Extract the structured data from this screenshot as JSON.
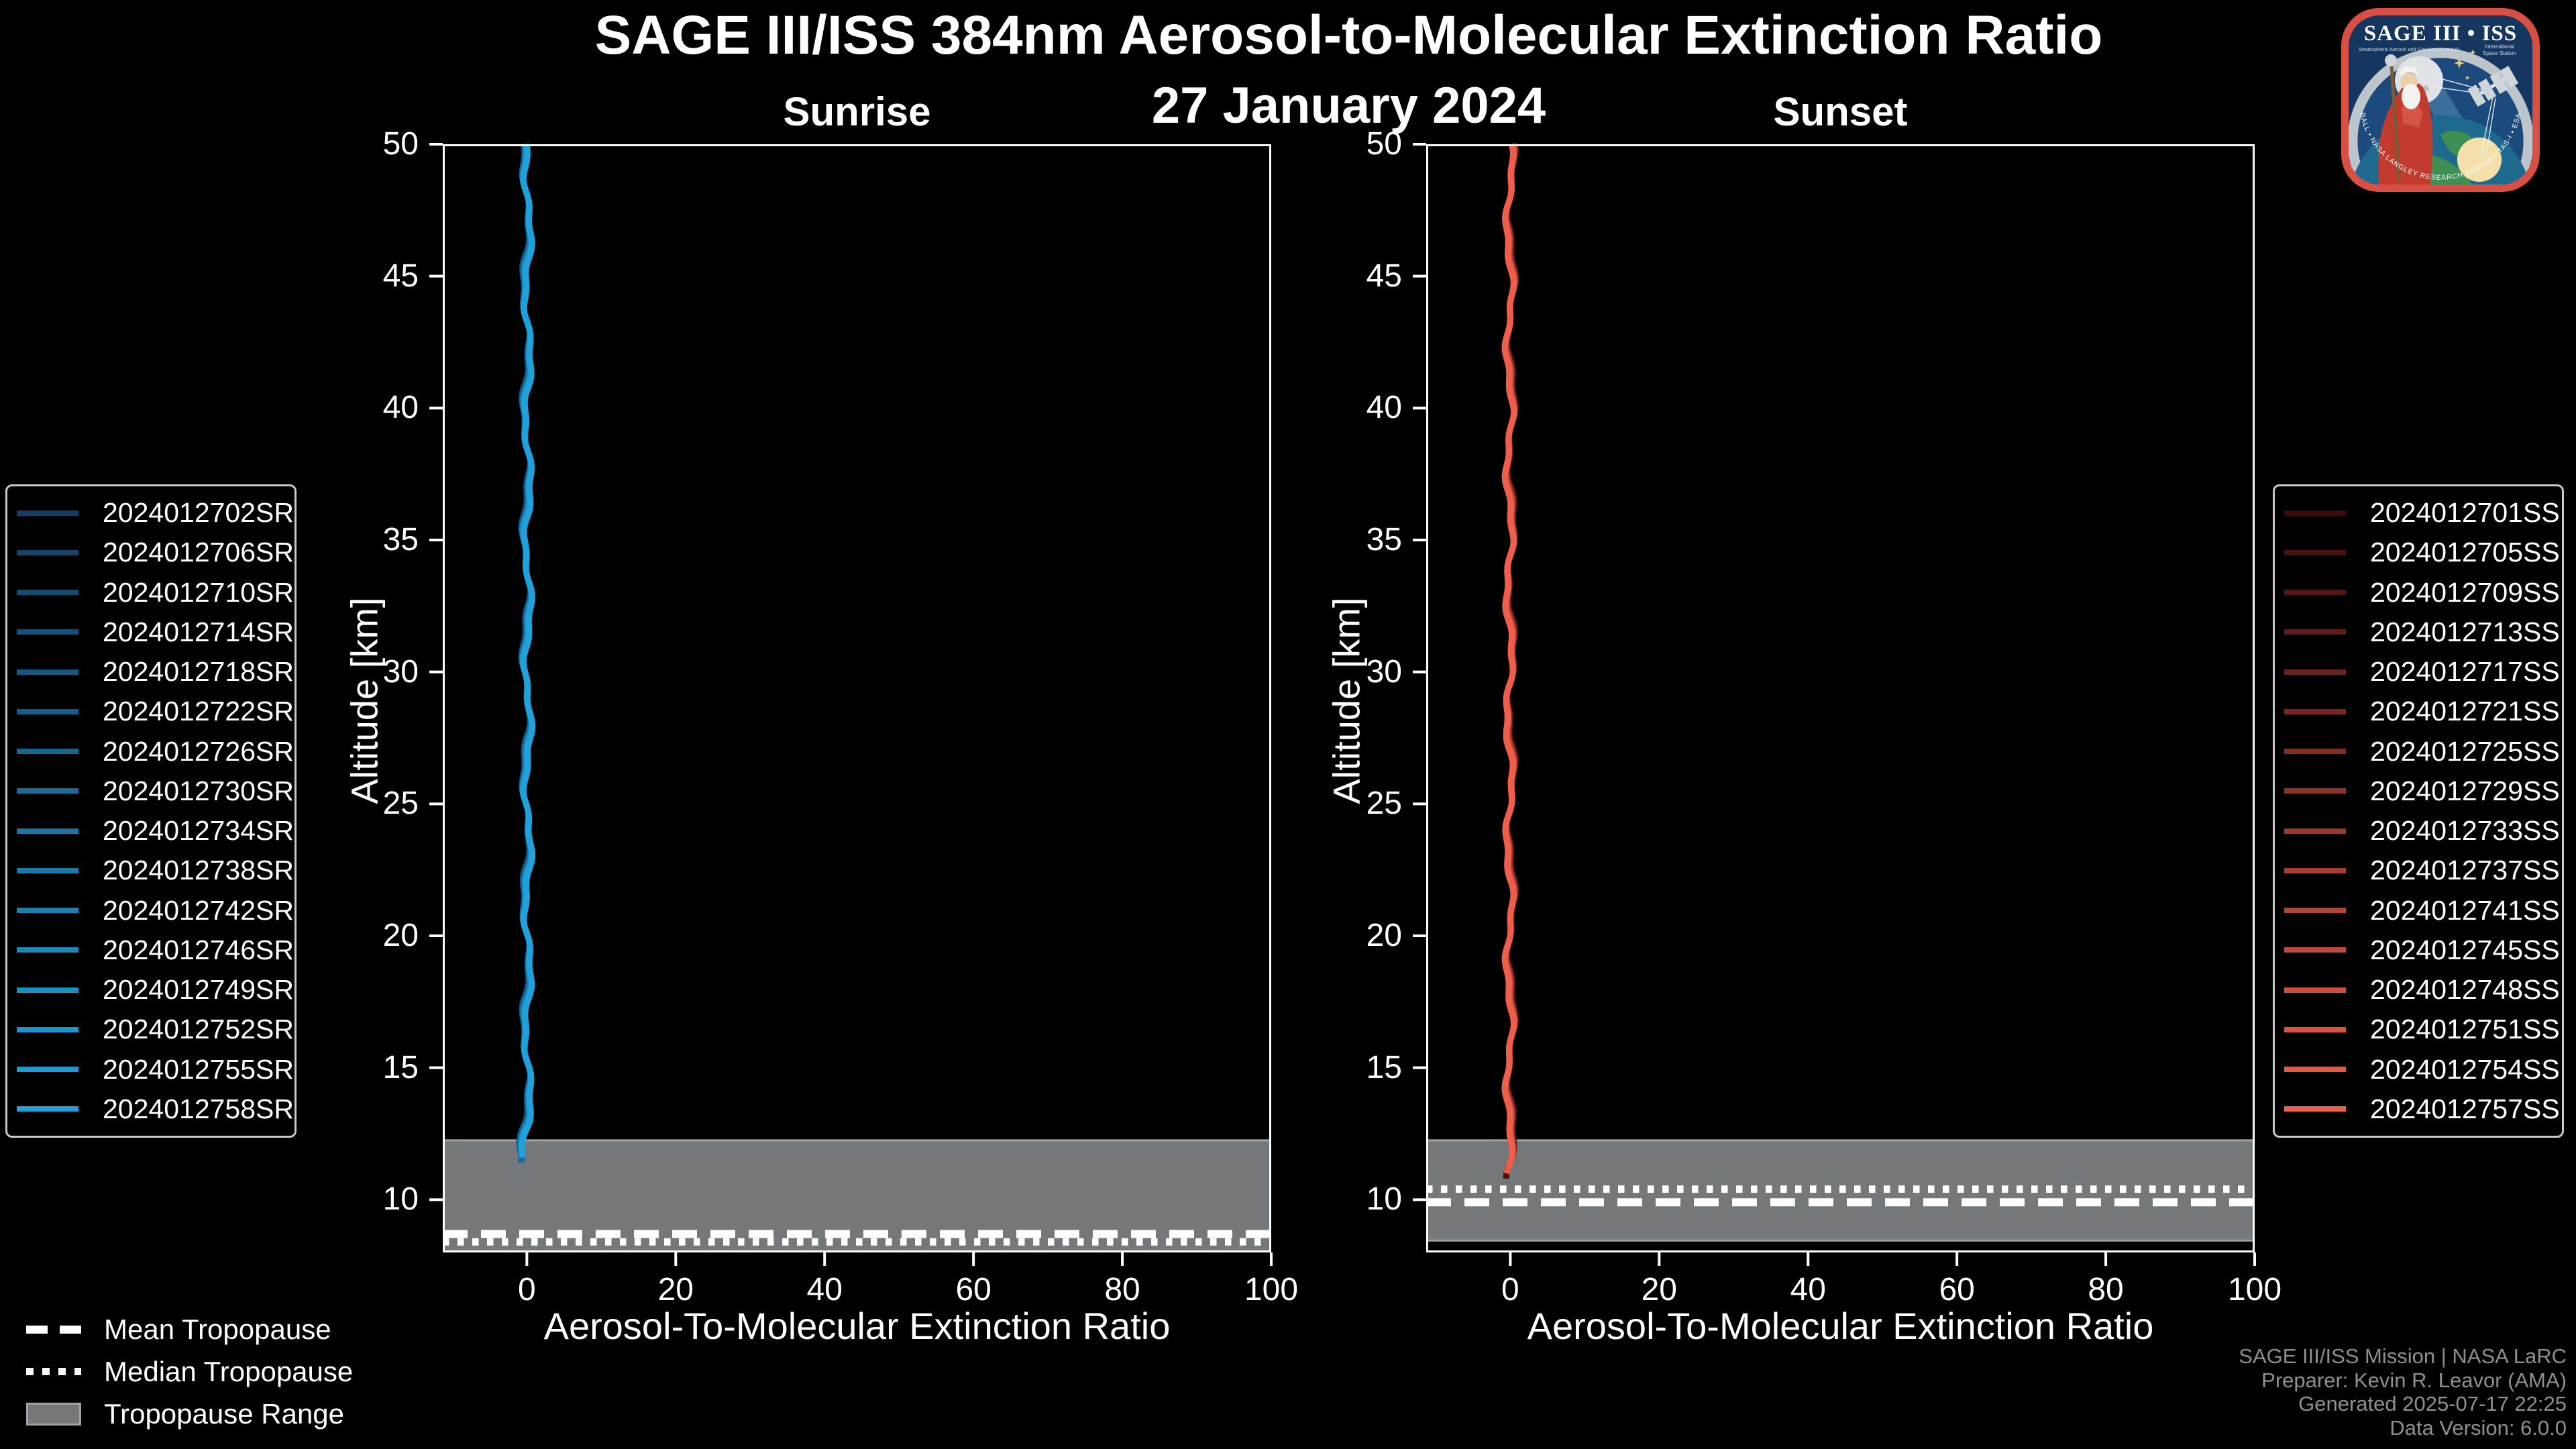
{
  "header": {
    "title": "SAGE III/ISS 384nm Aerosol-to-Molecular Extinction Ratio",
    "subtitle": "27 January 2024"
  },
  "colors": {
    "background": "#000000",
    "text": "#ffffff",
    "credits_text": "#8d9093",
    "tropopause_band": "#75787b",
    "tropopause_band_edge": "#9fa3a7",
    "tropopause_lines": "#ffffff",
    "axis": "#ffffff"
  },
  "chart_data": [
    {
      "id": "sunrise",
      "type": "line",
      "title": "Sunrise",
      "xlabel": "Aerosol-To-Molecular Extinction Ratio",
      "ylabel": "Altitude [km]",
      "xlim": [
        -11.3,
        100
      ],
      "ylim": [
        8,
        50
      ],
      "xticks": [
        0,
        20,
        40,
        60,
        80,
        100
      ],
      "yticks": [
        50,
        45,
        40,
        35,
        30,
        25,
        20,
        15,
        10
      ],
      "grid": false,
      "legend_position": "left-outside",
      "series_color_start": "#123E62",
      "series_color_end": "#1FA2DC",
      "series_note": "16 overlapping vertical profiles; extinction ratio ~0 from 50 km down to ~11.5 km",
      "profile": {
        "x_center": 0,
        "top_alt": 50,
        "end_alt_bright": 11.5,
        "end_alt_dark": 11.3,
        "lean": -0.5,
        "spread": 0.02
      },
      "events": [
        "2024012702SR",
        "2024012706SR",
        "2024012710SR",
        "2024012714SR",
        "2024012718SR",
        "2024012722SR",
        "2024012726SR",
        "2024012730SR",
        "2024012734SR",
        "2024012738SR",
        "2024012742SR",
        "2024012746SR",
        "2024012749SR",
        "2024012752SR",
        "2024012755SR",
        "2024012758SR"
      ],
      "tropopause": {
        "mean_km": 8.7,
        "median_km": 8.4,
        "range_top_km": 12.25,
        "range_bottom_km": 8.0
      }
    },
    {
      "id": "sunset",
      "type": "line",
      "title": "Sunset",
      "xlabel": "Aerosol-To-Molecular Extinction Ratio",
      "ylabel": "Altitude [km]",
      "xlim": [
        -11.3,
        100
      ],
      "ylim": [
        8,
        50
      ],
      "xticks": [
        0,
        20,
        40,
        60,
        80,
        100
      ],
      "yticks": [
        50,
        45,
        40,
        35,
        30,
        25,
        20,
        15,
        10
      ],
      "grid": false,
      "legend_position": "right-outside",
      "series_color_start": "#3C0C0C",
      "series_color_end": "#EF5E4B",
      "series_note": "16 overlapping vertical profiles; extinction ratio ~0 from 50 km down to ~11 km",
      "profile": {
        "x_center": 0,
        "top_alt": 50,
        "end_alt_bright": 11.0,
        "end_alt_dark": 10.78,
        "lean": -0.3,
        "spread": -0.02
      },
      "events": [
        "2024012701SS",
        "2024012705SS",
        "2024012709SS",
        "2024012713SS",
        "2024012717SS",
        "2024012721SS",
        "2024012725SS",
        "2024012729SS",
        "2024012733SS",
        "2024012737SS",
        "2024012741SS",
        "2024012745SS",
        "2024012748SS",
        "2024012751SS",
        "2024012754SS",
        "2024012757SS"
      ],
      "tropopause": {
        "mean_km": 9.9,
        "median_km": 10.4,
        "range_top_km": 12.25,
        "range_bottom_km": 8.45
      }
    }
  ],
  "tropo_legend": {
    "items": [
      {
        "label": "Mean Tropopause",
        "style": "dashed"
      },
      {
        "label": "Median Tropopause",
        "style": "dotted"
      },
      {
        "label": "Tropopause Range",
        "style": "band"
      }
    ]
  },
  "credits": {
    "lines": [
      "SAGE III/ISS Mission | NASA LaRC",
      "Preparer: Kevin R. Leavor (AMA)",
      "Generated 2025-07-17 22:25",
      "Data Version: 6.0.0"
    ]
  },
  "logo": {
    "title": "SAGE III • ISS",
    "subtitle_left": "Stratospheric Aerosol and Gas Experiment III",
    "subtitle_right_1": "International",
    "subtitle_right_2": "Space Station",
    "ring_text": "BALL • NASA LANGLEY RESEARCH CENTER • TAS-I • ESA"
  }
}
